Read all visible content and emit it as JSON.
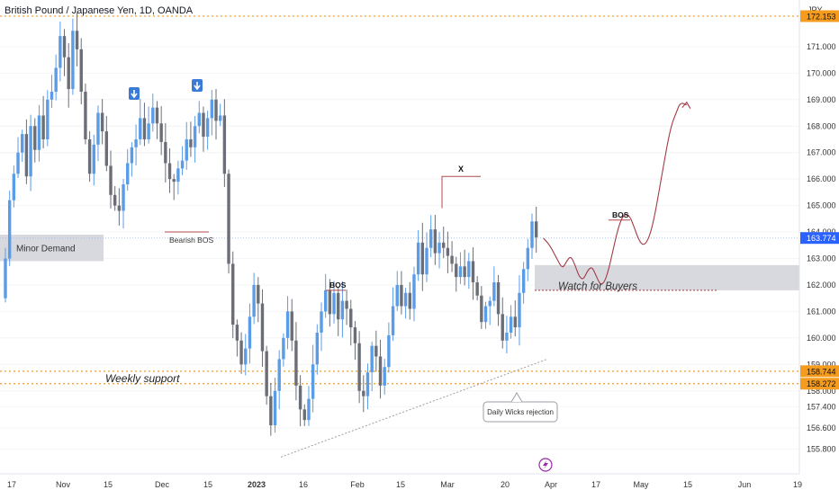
{
  "header": {
    "title": "British Pound / Japanese Yen, 1D, OANDA",
    "currency": "JPY"
  },
  "colors": {
    "up": "#5b9ce6",
    "down": "#6b6e76",
    "dotted_level": "#f59b1d",
    "price_tag": "#2962ff",
    "level_tag": "#f59b1d",
    "projection": "#a33a45",
    "demand_zone": "#d8d9de",
    "trendline": "#9b9ea6",
    "signal_badge": "#3a7bd5",
    "lightning": "#9c27b0"
  },
  "chart_data": {
    "type": "candlestick",
    "x_tick_labels": [
      "17",
      "Nov",
      "15",
      "Dec",
      "15",
      "2023",
      "16",
      "Feb",
      "15",
      "Mar",
      "20",
      "Apr",
      "17",
      "May",
      "15",
      "Jun",
      "19"
    ],
    "y_tick_labels": [
      "155.800",
      "156.600",
      "157.400",
      "158.000",
      "159.000",
      "160.000",
      "161.000",
      "162.000",
      "163.000",
      "164.000",
      "165.000",
      "166.000",
      "167.000",
      "168.000",
      "169.000",
      "170.000",
      "171.000",
      "172.153"
    ],
    "ylim": [
      155.5,
      172.7
    ],
    "last_price": 163.774,
    "levels": [
      {
        "value": 172.153,
        "label": "172.153"
      },
      {
        "value": 158.744,
        "label": "158.744"
      },
      {
        "value": 158.272,
        "label": "158.272"
      }
    ],
    "annotations": {
      "minor_demand": "Minor Demand",
      "bearish_bos": "Bearish BOS",
      "bos_left": "BOS",
      "x_mark": "X",
      "bos_right": "BOS",
      "watch_for_buyers": "Watch for Buyers",
      "weekly_support": "Weekly support",
      "daily_wicks": "Daily Wicks rejection"
    },
    "series": [
      {
        "closes": [
          163.0,
          165.2,
          166.2,
          167.0,
          167.7,
          166.1,
          168.0,
          167.1,
          168.4,
          167.5,
          169.0,
          169.3,
          170.2,
          171.4,
          170.6,
          169.4,
          171.6,
          170.9,
          169.3,
          167.5,
          166.2,
          167.3,
          168.5,
          167.8,
          166.5,
          165.4,
          165.0,
          164.8,
          165.8,
          166.6,
          167.2,
          167.5,
          168.3,
          167.5,
          168.1,
          168.7,
          168.1,
          167.4,
          166.6,
          166.0,
          165.9,
          166.4,
          166.7,
          167.5,
          167.2,
          168.0,
          168.5,
          167.6,
          168.3,
          169.0,
          168.2,
          168.4,
          166.2,
          162.8,
          160.5,
          159.9,
          159.0,
          159.6,
          160.8,
          162.0,
          161.3,
          159.5,
          157.8,
          156.7,
          158.0,
          159.2,
          160.0,
          161.0,
          159.9,
          158.2,
          157.3,
          156.9,
          157.7,
          159.0,
          160.2,
          161.0,
          161.8,
          160.9,
          161.7,
          160.7,
          161.4,
          161.1,
          160.4,
          159.8,
          158.0,
          157.8,
          158.7,
          159.7,
          159.3,
          158.2,
          158.9,
          160.1,
          161.2,
          162.0,
          161.2,
          161.7,
          161.1,
          162.4,
          163.6,
          162.4,
          163.4,
          164.1,
          163.2,
          163.6,
          163.4,
          163.1,
          162.8,
          162.3,
          162.7,
          162.3,
          162.9,
          162.1,
          161.6,
          160.6,
          161.2,
          161.4,
          162.1,
          160.9,
          159.9,
          160.2,
          160.8,
          160.4,
          161.7,
          162.6,
          163.4,
          164.4,
          163.8
        ]
      }
    ],
    "projection_path": [
      [
        0,
        163.77
      ],
      [
        1.5,
        163.5
      ],
      [
        3,
        163.05
      ],
      [
        4.5,
        162.6
      ],
      [
        5.5,
        162.9
      ],
      [
        6.5,
        163.1
      ],
      [
        7.5,
        162.75
      ],
      [
        8.5,
        162.3
      ],
      [
        9.5,
        162.2
      ],
      [
        10.5,
        162.55
      ],
      [
        11.5,
        162.7
      ],
      [
        12.5,
        162.35
      ],
      [
        13.5,
        162.0
      ],
      [
        14.5,
        162.1
      ],
      [
        15.5,
        162.6
      ],
      [
        16.5,
        163.3
      ],
      [
        17.5,
        164.0
      ],
      [
        18.5,
        164.5
      ],
      [
        19.5,
        164.7
      ],
      [
        20.5,
        164.6
      ],
      [
        21.5,
        164.2
      ],
      [
        22.5,
        163.75
      ],
      [
        23.5,
        163.5
      ],
      [
        24.5,
        163.6
      ],
      [
        25.5,
        164.0
      ],
      [
        26.5,
        164.7
      ],
      [
        27.5,
        165.6
      ],
      [
        28.5,
        166.5
      ],
      [
        29.5,
        167.4
      ],
      [
        30.5,
        168.1
      ],
      [
        31.5,
        168.5
      ],
      [
        32.5,
        168.9
      ],
      [
        34,
        168.8
      ]
    ]
  }
}
